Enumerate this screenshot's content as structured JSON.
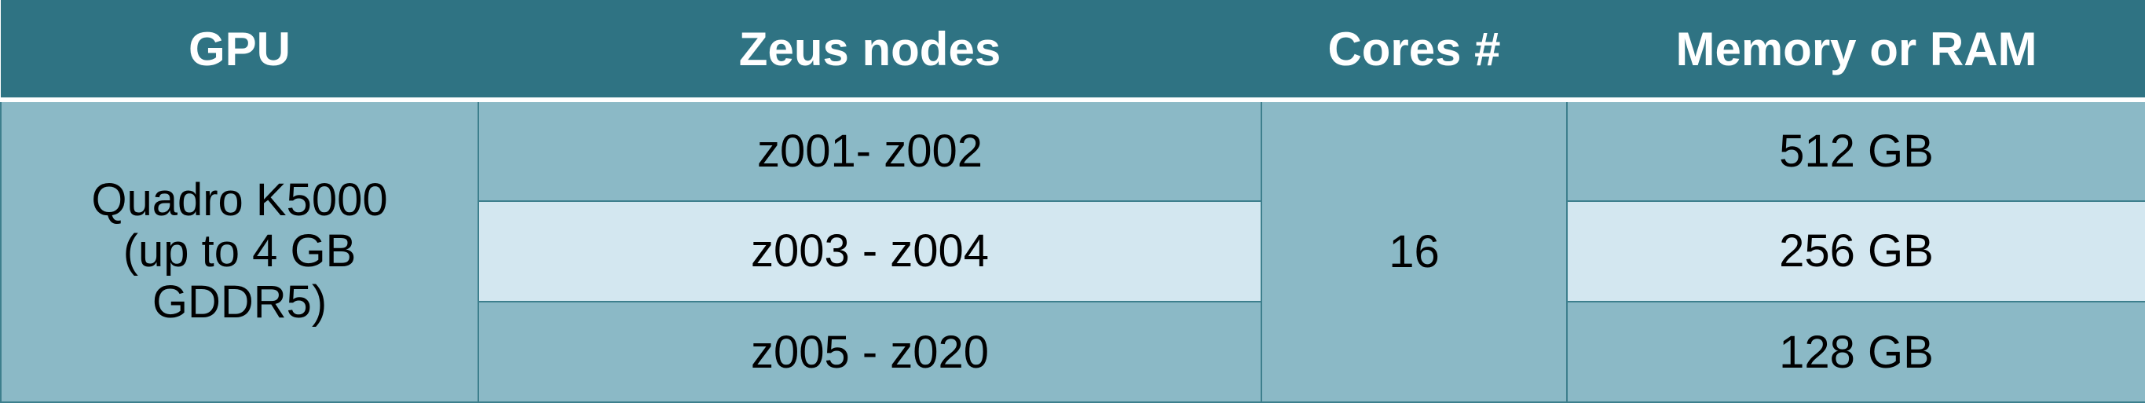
{
  "table": {
    "headers": [
      "GPU",
      "Zeus nodes",
      "Cores #",
      "Memory or RAM"
    ],
    "gpu": {
      "lines": [
        "Quadro K5000",
        "(up to 4 GB",
        "GDDR5)"
      ]
    },
    "cores": "16",
    "rows": [
      {
        "nodes": "z001- z002",
        "memory": "512 GB"
      },
      {
        "nodes": "z003 - z004",
        "memory": "256 GB"
      },
      {
        "nodes": "z005 - z020",
        "memory": "128 GB"
      }
    ]
  }
}
